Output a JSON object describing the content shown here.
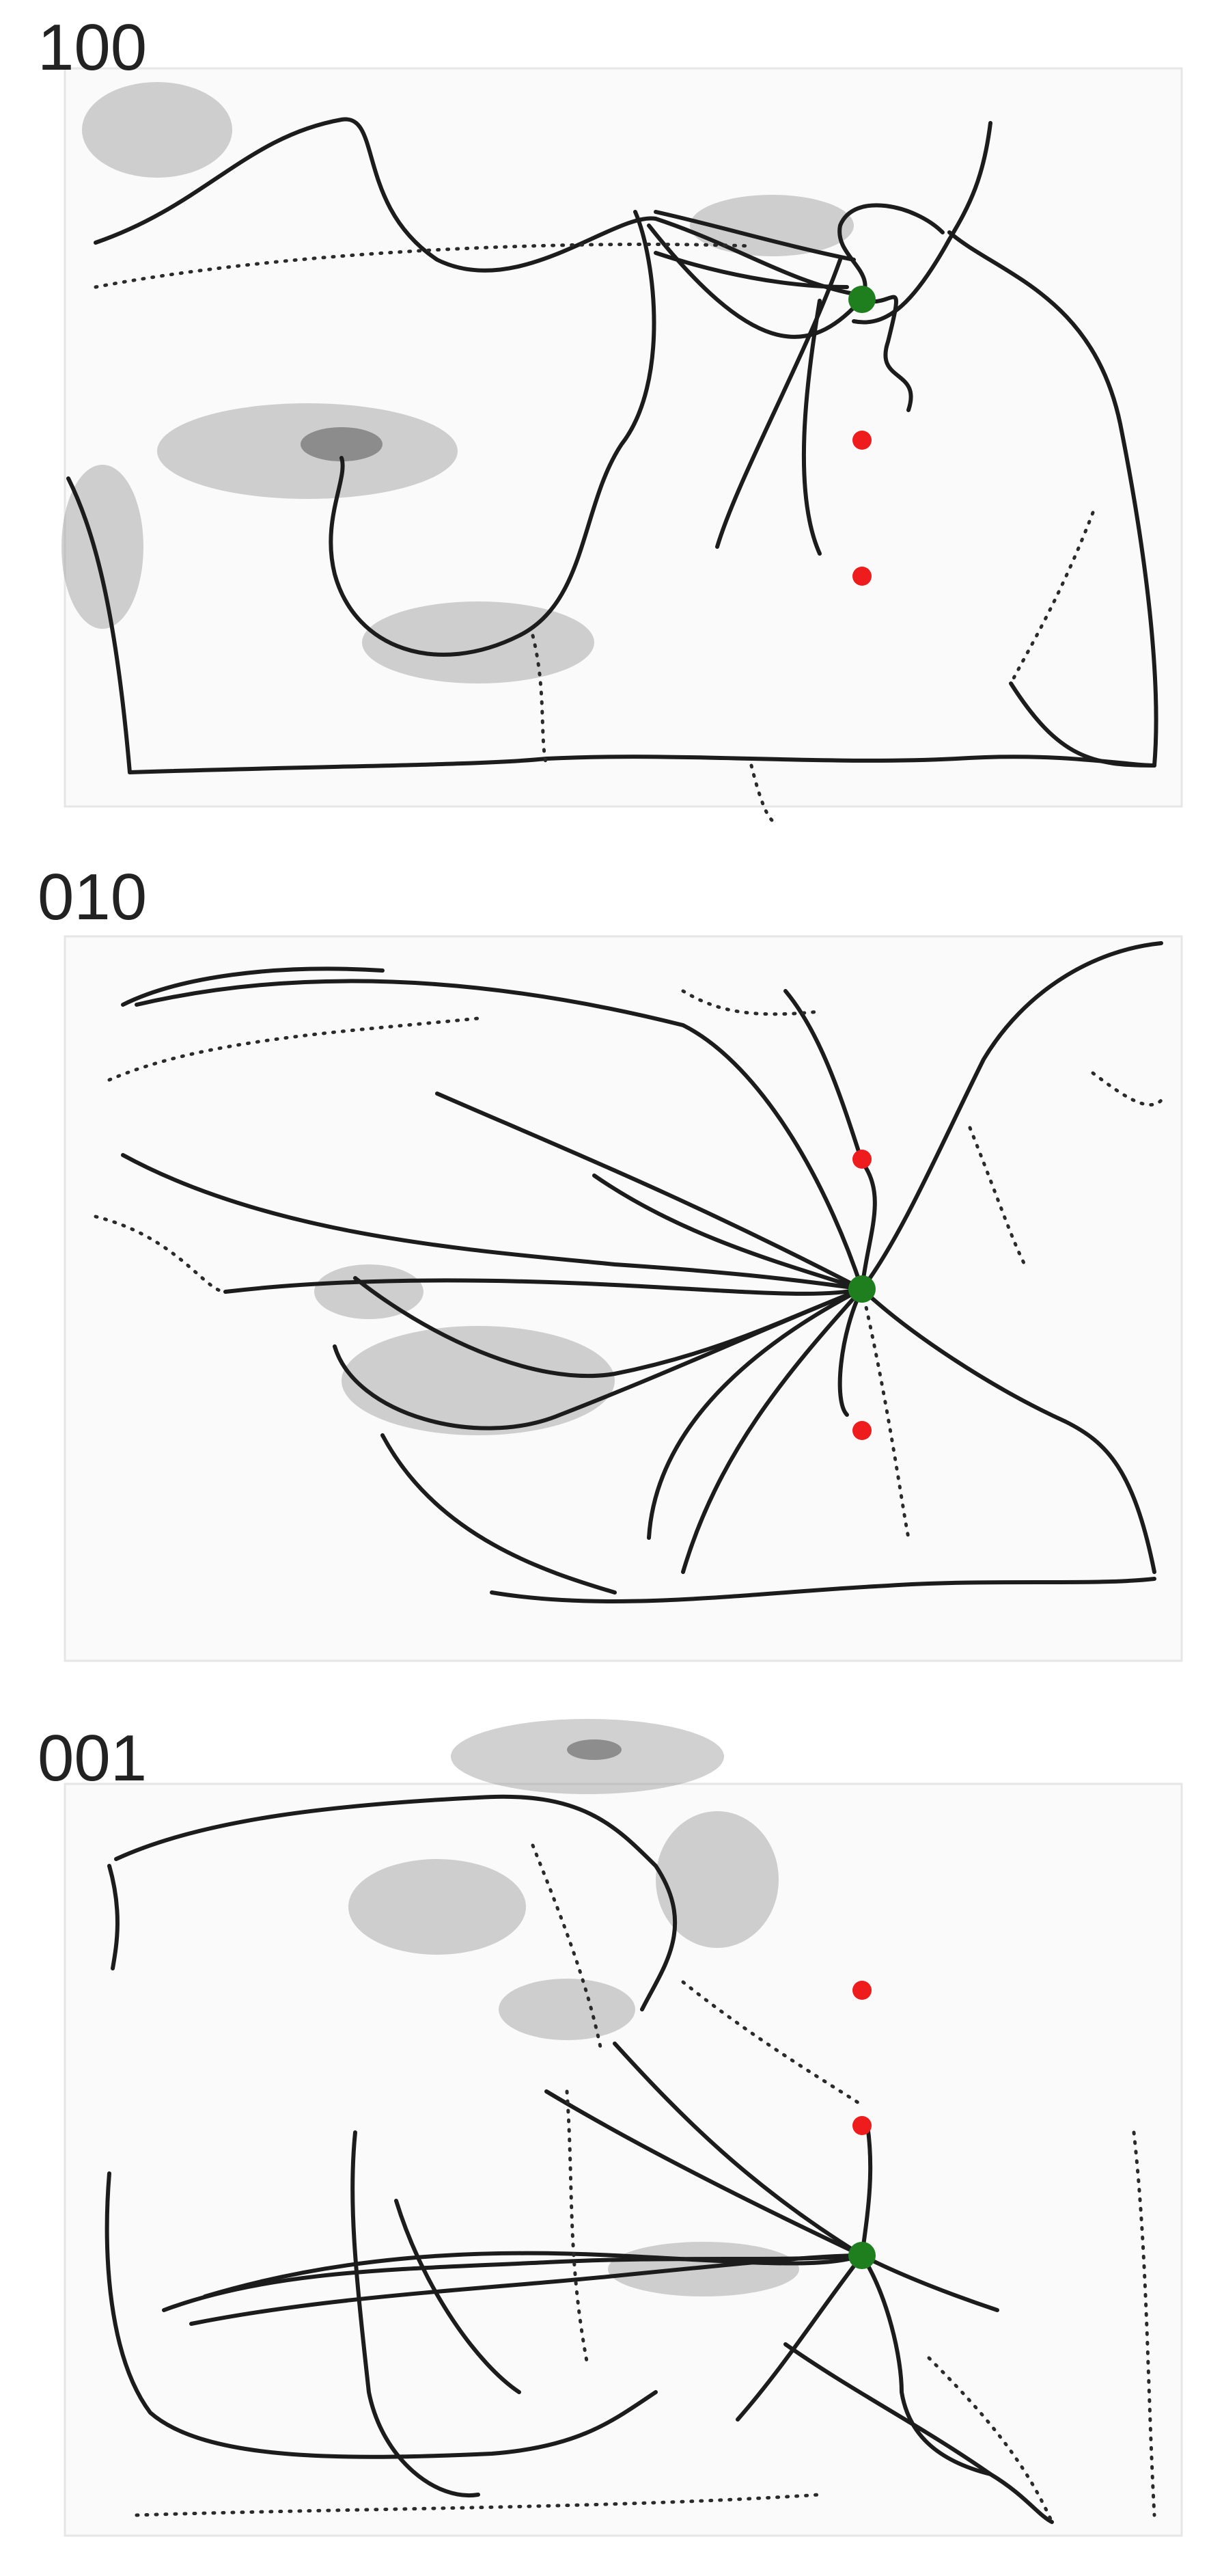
{
  "panels": [
    {
      "label": "100"
    },
    {
      "label": "010"
    },
    {
      "label": "001"
    }
  ],
  "colors": {
    "start_marker": "#1f7f1f",
    "target_marker": "#ee1c1c",
    "track": "#1c1c1c"
  }
}
